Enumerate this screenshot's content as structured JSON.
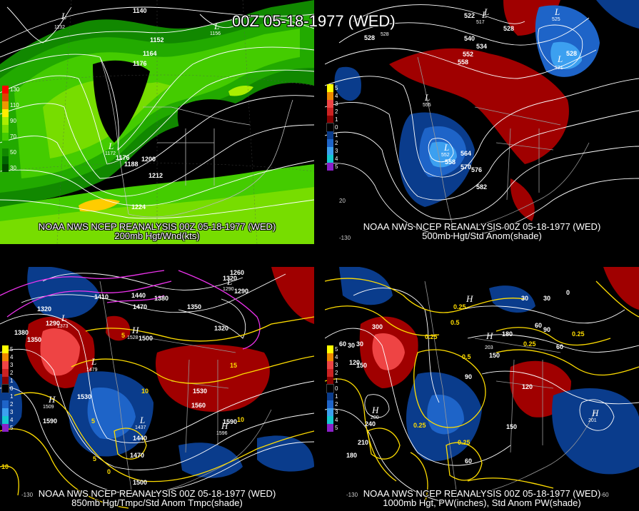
{
  "title": "00Z 05-18-1977 (WED)",
  "panels": {
    "p200": {
      "caption1": "NOAA NWS NCEP REANALYSIS 00Z 05-18-1977 (WED)",
      "caption2": "200mb Hgt/Wnd(kts)",
      "legend": [
        {
          "label": "130",
          "color": "#ff0000"
        },
        {
          "label": "",
          "color": "#dd4400"
        },
        {
          "label": "110",
          "color": "#ee9900"
        },
        {
          "label": "",
          "color": "#ffee00"
        },
        {
          "label": "90",
          "color": "#aaee00"
        },
        {
          "label": "",
          "color": "#77dd00"
        },
        {
          "label": "70",
          "color": "#44cc00"
        },
        {
          "label": "",
          "color": "#22aa00"
        },
        {
          "label": "50",
          "color": "#118800"
        },
        {
          "label": "",
          "color": "#006600"
        },
        {
          "label": "30",
          "color": "#004400"
        }
      ],
      "centers": [
        {
          "letter": "L",
          "value": "1132"
        },
        {
          "letter": "L",
          "value": "1156"
        },
        {
          "letter": "L",
          "value": "1172"
        }
      ],
      "contour_labels": [
        "1140",
        "1152",
        "1164",
        "1176",
        "1176",
        "1188",
        "1200",
        "1212",
        "1224"
      ]
    },
    "p500": {
      "caption1": "NOAA NWS NCEP REANALYSIS 00Z 05-18-1977 (WED)",
      "caption2": "500mb Hgt/Std Anom(shade)",
      "legend": [
        {
          "label": "5",
          "color": "#ffff00"
        },
        {
          "label": "4",
          "color": "#ee8800"
        },
        {
          "label": "3",
          "color": "#ee4444"
        },
        {
          "label": "2",
          "color": "#cc2222"
        },
        {
          "label": "1",
          "color": "#880000"
        },
        {
          "label": "0",
          "color": "#000000"
        },
        {
          "label": "1",
          "color": "#0a3c8c"
        },
        {
          "label": "2",
          "color": "#1e64c8"
        },
        {
          "label": "3",
          "color": "#3ca0f0"
        },
        {
          "label": "4",
          "color": "#14c8d0"
        },
        {
          "label": "5",
          "color": "#8a20c8"
        }
      ],
      "centers": [
        {
          "letter": "L",
          "value": "528"
        },
        {
          "letter": "L",
          "value": "517"
        },
        {
          "letter": "L",
          "value": "525"
        },
        {
          "letter": "L",
          "value": "521"
        },
        {
          "letter": "L",
          "value": "555"
        },
        {
          "letter": "L",
          "value": "552"
        }
      ],
      "contour_labels": [
        "522",
        "528",
        "528",
        "540",
        "552",
        "534",
        "558",
        "528",
        "564",
        "570",
        "576",
        "582",
        "558"
      ],
      "ticks": [
        "20",
        "-130"
      ]
    },
    "p850": {
      "caption1": "NOAA NWS NCEP REANALYSIS 00Z 05-18-1977 (WED)",
      "caption2": "850mb Hgt/Tmpc/Std Anom Tmpc(shade)",
      "legend": [
        {
          "label": "5",
          "color": "#ffff00"
        },
        {
          "label": "4",
          "color": "#ee8800"
        },
        {
          "label": "3",
          "color": "#ee4444"
        },
        {
          "label": "2",
          "color": "#cc2222"
        },
        {
          "label": "1",
          "color": "#880000"
        },
        {
          "label": "0",
          "color": "#000000"
        },
        {
          "label": "1",
          "color": "#0a3c8c"
        },
        {
          "label": "2",
          "color": "#1e64c8"
        },
        {
          "label": "3",
          "color": "#3ca0f0"
        },
        {
          "label": "4",
          "color": "#14c8d0"
        },
        {
          "label": "5",
          "color": "#8a20c8"
        }
      ],
      "centers": [
        {
          "letter": "L",
          "value": "1373"
        },
        {
          "letter": "H",
          "value": "1528"
        },
        {
          "letter": "L",
          "value": "1479"
        },
        {
          "letter": "H",
          "value": "1509"
        },
        {
          "letter": "L",
          "value": "1437"
        },
        {
          "letter": "H",
          "value": "1596"
        },
        {
          "letter": "L",
          "value": "1290"
        }
      ],
      "contour_labels": [
        "1260",
        "1290",
        "1320",
        "1380",
        "1350",
        "1290",
        "1320",
        "1410",
        "1440",
        "1380",
        "1470",
        "1350",
        "1500",
        "1320",
        "1530",
        "1560",
        "1590",
        "1470",
        "1500",
        "1590",
        "1530",
        "1440"
      ],
      "temp_labels": [
        "5",
        "5",
        "10",
        "15",
        "10",
        "5",
        "0",
        "10"
      ],
      "ticks": [
        "-130"
      ]
    },
    "p1000": {
      "caption1": "NOAA NWS NCEP REANALYSIS 00Z 05-18-1977 (WED)",
      "caption2": "1000mb Hgt, PW(inches), Std Anom PW(shade)",
      "legend": [
        {
          "label": "5",
          "color": "#ffff00"
        },
        {
          "label": "4",
          "color": "#ee8800"
        },
        {
          "label": "3",
          "color": "#ee4444"
        },
        {
          "label": "2",
          "color": "#cc2222"
        },
        {
          "label": "1",
          "color": "#880000"
        },
        {
          "label": "0",
          "color": "#000000"
        },
        {
          "label": "1",
          "color": "#0a3c8c"
        },
        {
          "label": "2",
          "color": "#1e64c8"
        },
        {
          "label": "3",
          "color": "#3ca0f0"
        },
        {
          "label": "4",
          "color": "#14c8d0"
        },
        {
          "label": "5",
          "color": "#8a20c8"
        }
      ],
      "centers": [
        {
          "letter": "H",
          "value": "203"
        },
        {
          "letter": "H",
          "value": "200"
        },
        {
          "letter": "H",
          "value": "201"
        },
        {
          "letter": "H",
          "value": ""
        }
      ],
      "contour_labels": [
        "30",
        "30",
        "300",
        "60",
        "30",
        "120",
        "150",
        "90",
        "180",
        "150",
        "60",
        "120",
        "240",
        "210",
        "180",
        "60",
        "90",
        "60",
        "150",
        "30",
        "0"
      ],
      "pw_labels": [
        "0.25",
        "0.5",
        "0.25",
        "0.5",
        "0.25",
        "0.25",
        "0.25",
        "0.25"
      ],
      "ticks": [
        "-130",
        "-60"
      ]
    }
  }
}
